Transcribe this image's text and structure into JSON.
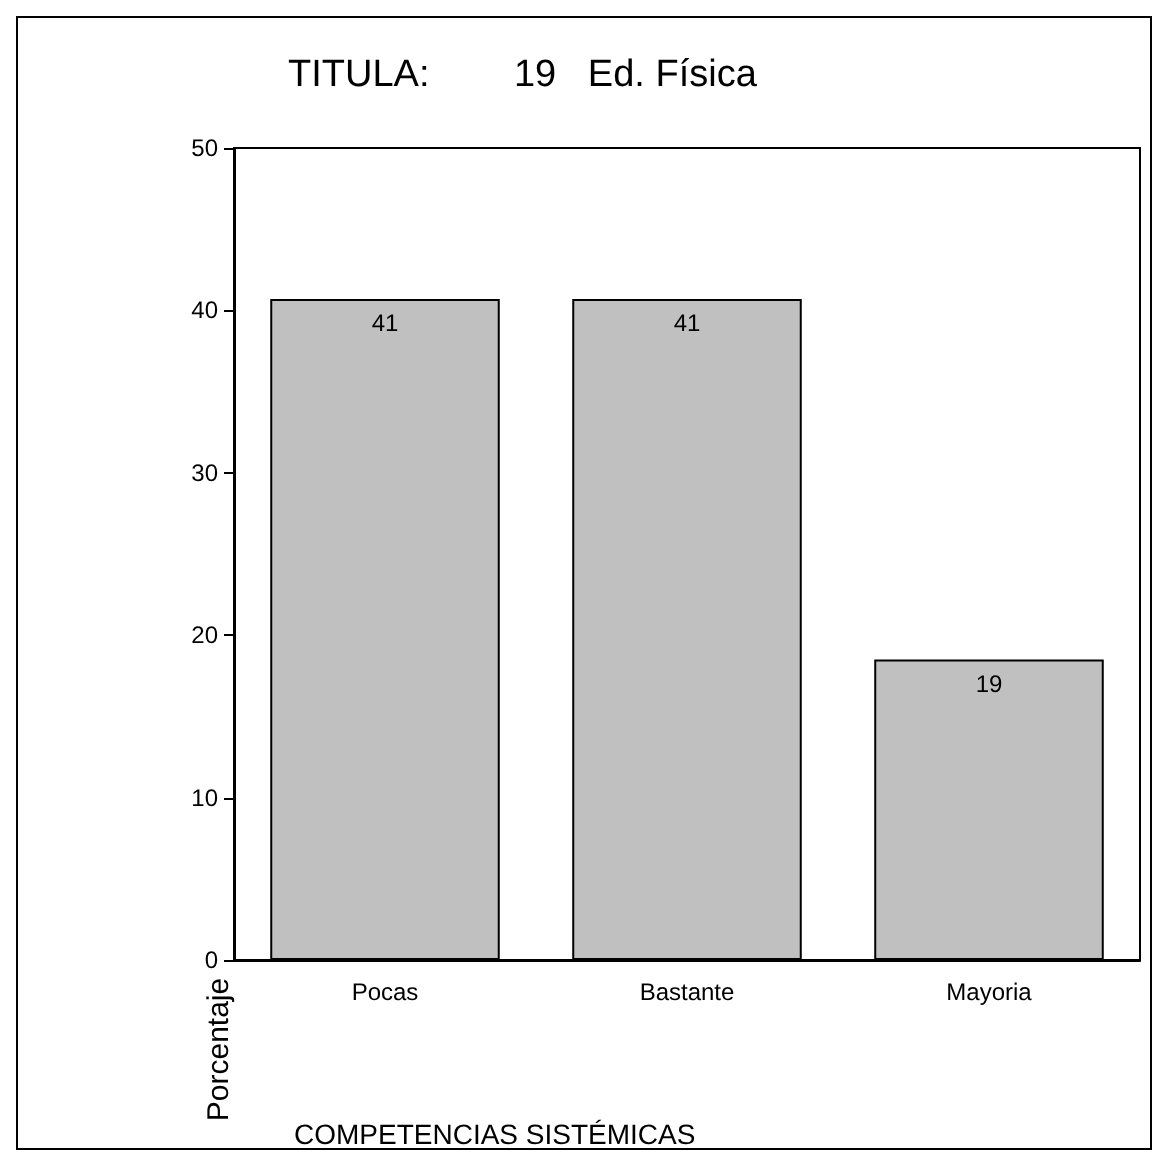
{
  "chart_data": {
    "type": "bar",
    "title": "TITULA:        19   Ed. Física",
    "xlabel": "COMPETENCIAS SISTÉMICAS",
    "ylabel": "Porcentaje",
    "categories": [
      "Pocas",
      "Bastante",
      "Mayoria"
    ],
    "values": [
      40.7,
      40.7,
      18.5
    ],
    "value_labels": [
      "41",
      "41",
      "19"
    ],
    "color": "#c0c0c0",
    "ylim": [
      0,
      50
    ],
    "yticks": [
      0,
      10,
      20,
      30,
      40,
      50
    ],
    "grid": false
  }
}
